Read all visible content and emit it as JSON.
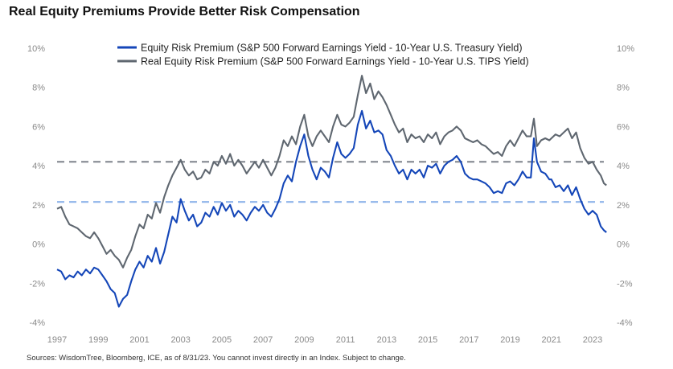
{
  "title": "Real Equity Premiums Provide Better Risk Compensation",
  "source": "Sources: WisdomTree, Bloomberg, ICE, as of 8/31/23. You cannot invest directly in an Index. Subject to change.",
  "chart_data": {
    "type": "line",
    "x_unit": "year",
    "xlim": [
      1997.0,
      2023.67
    ],
    "ylim": [
      -4,
      10
    ],
    "y_ticks": [
      "10%",
      "8%",
      "6%",
      "4%",
      "2%",
      "0%",
      "-2%",
      "-4%"
    ],
    "y_tick_values": [
      10,
      8,
      6,
      4,
      2,
      0,
      -2,
      -4
    ],
    "x_ticks": [
      "1997",
      "1999",
      "2001",
      "2003",
      "2005",
      "2007",
      "2009",
      "2011",
      "2013",
      "2015",
      "2017",
      "2019",
      "2021",
      "2023"
    ],
    "x_tick_values": [
      1997,
      1999,
      2001,
      2003,
      2005,
      2007,
      2009,
      2011,
      2013,
      2015,
      2017,
      2019,
      2021,
      2023
    ],
    "legend_placement": "top-center",
    "grid": false,
    "reference_lines": [
      {
        "y": 4.2,
        "color": "#8a8f96",
        "style": "dashed"
      },
      {
        "y": 2.15,
        "color": "#8fb4ea",
        "style": "dashed"
      }
    ],
    "series": [
      {
        "name": "Equity Risk Premium (S&P 500 Forward Earnings Yield - 10-Year U.S. Treasury Yield)",
        "color": "#1446b8",
        "points": [
          [
            1997.0,
            -1.3
          ],
          [
            1997.2,
            -1.4
          ],
          [
            1997.4,
            -1.8
          ],
          [
            1997.6,
            -1.6
          ],
          [
            1997.8,
            -1.7
          ],
          [
            1998.0,
            -1.4
          ],
          [
            1998.2,
            -1.6
          ],
          [
            1998.4,
            -1.3
          ],
          [
            1998.6,
            -1.5
          ],
          [
            1998.8,
            -1.2
          ],
          [
            1999.0,
            -1.3
          ],
          [
            1999.2,
            -1.6
          ],
          [
            1999.4,
            -1.9
          ],
          [
            1999.6,
            -2.3
          ],
          [
            1999.8,
            -2.5
          ],
          [
            2000.0,
            -3.2
          ],
          [
            2000.2,
            -2.8
          ],
          [
            2000.4,
            -2.6
          ],
          [
            2000.6,
            -1.9
          ],
          [
            2000.8,
            -1.3
          ],
          [
            2001.0,
            -0.9
          ],
          [
            2001.2,
            -1.2
          ],
          [
            2001.4,
            -0.6
          ],
          [
            2001.6,
            -0.9
          ],
          [
            2001.8,
            -0.2
          ],
          [
            2002.0,
            -1.0
          ],
          [
            2002.2,
            -0.4
          ],
          [
            2002.4,
            0.5
          ],
          [
            2002.6,
            1.4
          ],
          [
            2002.8,
            1.1
          ],
          [
            2003.0,
            2.3
          ],
          [
            2003.2,
            1.7
          ],
          [
            2003.4,
            1.2
          ],
          [
            2003.6,
            1.5
          ],
          [
            2003.8,
            0.9
          ],
          [
            2004.0,
            1.1
          ],
          [
            2004.2,
            1.6
          ],
          [
            2004.4,
            1.4
          ],
          [
            2004.6,
            1.9
          ],
          [
            2004.8,
            1.5
          ],
          [
            2005.0,
            2.1
          ],
          [
            2005.2,
            1.7
          ],
          [
            2005.4,
            2.0
          ],
          [
            2005.6,
            1.4
          ],
          [
            2005.8,
            1.7
          ],
          [
            2006.0,
            1.5
          ],
          [
            2006.2,
            1.2
          ],
          [
            2006.4,
            1.6
          ],
          [
            2006.6,
            1.9
          ],
          [
            2006.8,
            1.7
          ],
          [
            2007.0,
            2.0
          ],
          [
            2007.2,
            1.6
          ],
          [
            2007.4,
            1.4
          ],
          [
            2007.6,
            1.8
          ],
          [
            2007.8,
            2.3
          ],
          [
            2008.0,
            3.1
          ],
          [
            2008.2,
            3.5
          ],
          [
            2008.4,
            3.2
          ],
          [
            2008.6,
            4.2
          ],
          [
            2008.8,
            5.0
          ],
          [
            2009.0,
            5.6
          ],
          [
            2009.2,
            4.5
          ],
          [
            2009.4,
            3.8
          ],
          [
            2009.6,
            3.3
          ],
          [
            2009.8,
            3.9
          ],
          [
            2010.0,
            3.7
          ],
          [
            2010.2,
            3.4
          ],
          [
            2010.4,
            4.4
          ],
          [
            2010.6,
            5.2
          ],
          [
            2010.8,
            4.6
          ],
          [
            2011.0,
            4.4
          ],
          [
            2011.2,
            4.6
          ],
          [
            2011.4,
            4.9
          ],
          [
            2011.6,
            6.1
          ],
          [
            2011.8,
            6.8
          ],
          [
            2012.0,
            5.9
          ],
          [
            2012.2,
            6.3
          ],
          [
            2012.4,
            5.7
          ],
          [
            2012.6,
            5.8
          ],
          [
            2012.8,
            5.6
          ],
          [
            2013.0,
            4.8
          ],
          [
            2013.2,
            4.5
          ],
          [
            2013.4,
            4.0
          ],
          [
            2013.6,
            3.6
          ],
          [
            2013.8,
            3.8
          ],
          [
            2014.0,
            3.3
          ],
          [
            2014.2,
            3.8
          ],
          [
            2014.4,
            3.6
          ],
          [
            2014.6,
            3.8
          ],
          [
            2014.8,
            3.4
          ],
          [
            2015.0,
            4.0
          ],
          [
            2015.2,
            3.9
          ],
          [
            2015.4,
            4.1
          ],
          [
            2015.6,
            3.6
          ],
          [
            2015.8,
            4.0
          ],
          [
            2016.0,
            4.2
          ],
          [
            2016.2,
            4.3
          ],
          [
            2016.4,
            4.5
          ],
          [
            2016.6,
            4.2
          ],
          [
            2016.8,
            3.6
          ],
          [
            2017.0,
            3.4
          ],
          [
            2017.2,
            3.3
          ],
          [
            2017.4,
            3.3
          ],
          [
            2017.6,
            3.2
          ],
          [
            2017.8,
            3.1
          ],
          [
            2018.0,
            2.9
          ],
          [
            2018.2,
            2.6
          ],
          [
            2018.4,
            2.7
          ],
          [
            2018.6,
            2.6
          ],
          [
            2018.8,
            3.1
          ],
          [
            2019.0,
            3.2
          ],
          [
            2019.2,
            3.0
          ],
          [
            2019.4,
            3.3
          ],
          [
            2019.6,
            3.7
          ],
          [
            2019.8,
            3.4
          ],
          [
            2020.0,
            3.4
          ],
          [
            2020.15,
            5.4
          ],
          [
            2020.3,
            4.2
          ],
          [
            2020.5,
            3.7
          ],
          [
            2020.7,
            3.6
          ],
          [
            2020.9,
            3.3
          ],
          [
            2021.0,
            3.3
          ],
          [
            2021.2,
            2.9
          ],
          [
            2021.4,
            3.0
          ],
          [
            2021.6,
            2.7
          ],
          [
            2021.8,
            3.0
          ],
          [
            2022.0,
            2.5
          ],
          [
            2022.2,
            2.9
          ],
          [
            2022.4,
            2.3
          ],
          [
            2022.6,
            1.8
          ],
          [
            2022.8,
            1.5
          ],
          [
            2023.0,
            1.7
          ],
          [
            2023.2,
            1.5
          ],
          [
            2023.4,
            0.9
          ],
          [
            2023.55,
            0.7
          ],
          [
            2023.67,
            0.6
          ]
        ]
      },
      {
        "name": "Real Equity Risk Premium (S&P 500 Forward Earnings Yield - 10-Year U.S. TIPS Yield)",
        "color": "#5f6770",
        "points": [
          [
            1997.0,
            1.8
          ],
          [
            1997.2,
            1.9
          ],
          [
            1997.4,
            1.4
          ],
          [
            1997.6,
            1.0
          ],
          [
            1997.8,
            0.9
          ],
          [
            1998.0,
            0.8
          ],
          [
            1998.2,
            0.6
          ],
          [
            1998.4,
            0.4
          ],
          [
            1998.6,
            0.3
          ],
          [
            1998.8,
            0.6
          ],
          [
            1999.0,
            0.3
          ],
          [
            1999.2,
            -0.1
          ],
          [
            1999.4,
            -0.5
          ],
          [
            1999.6,
            -0.3
          ],
          [
            1999.8,
            -0.6
          ],
          [
            2000.0,
            -0.8
          ],
          [
            2000.2,
            -1.2
          ],
          [
            2000.4,
            -0.7
          ],
          [
            2000.6,
            -0.3
          ],
          [
            2000.8,
            0.4
          ],
          [
            2001.0,
            1.0
          ],
          [
            2001.2,
            0.8
          ],
          [
            2001.4,
            1.5
          ],
          [
            2001.6,
            1.3
          ],
          [
            2001.8,
            2.1
          ],
          [
            2002.0,
            1.6
          ],
          [
            2002.2,
            2.4
          ],
          [
            2002.4,
            3.0
          ],
          [
            2002.6,
            3.5
          ],
          [
            2002.8,
            3.9
          ],
          [
            2003.0,
            4.3
          ],
          [
            2003.2,
            3.8
          ],
          [
            2003.4,
            3.5
          ],
          [
            2003.6,
            3.7
          ],
          [
            2003.8,
            3.3
          ],
          [
            2004.0,
            3.4
          ],
          [
            2004.2,
            3.8
          ],
          [
            2004.4,
            3.6
          ],
          [
            2004.6,
            4.2
          ],
          [
            2004.8,
            4.0
          ],
          [
            2005.0,
            4.5
          ],
          [
            2005.2,
            4.1
          ],
          [
            2005.4,
            4.6
          ],
          [
            2005.6,
            4.0
          ],
          [
            2005.8,
            4.3
          ],
          [
            2006.0,
            4.0
          ],
          [
            2006.2,
            3.6
          ],
          [
            2006.4,
            3.9
          ],
          [
            2006.6,
            4.2
          ],
          [
            2006.8,
            3.9
          ],
          [
            2007.0,
            4.3
          ],
          [
            2007.2,
            3.9
          ],
          [
            2007.4,
            3.5
          ],
          [
            2007.6,
            3.9
          ],
          [
            2007.8,
            4.5
          ],
          [
            2008.0,
            5.3
          ],
          [
            2008.2,
            5.0
          ],
          [
            2008.4,
            5.5
          ],
          [
            2008.6,
            5.1
          ],
          [
            2008.8,
            6.0
          ],
          [
            2009.0,
            6.6
          ],
          [
            2009.2,
            5.5
          ],
          [
            2009.4,
            5.0
          ],
          [
            2009.6,
            5.5
          ],
          [
            2009.8,
            5.8
          ],
          [
            2010.0,
            5.5
          ],
          [
            2010.2,
            5.2
          ],
          [
            2010.4,
            6.0
          ],
          [
            2010.6,
            6.6
          ],
          [
            2010.8,
            6.1
          ],
          [
            2011.0,
            6.0
          ],
          [
            2011.2,
            6.2
          ],
          [
            2011.4,
            6.5
          ],
          [
            2011.6,
            7.6
          ],
          [
            2011.8,
            8.6
          ],
          [
            2012.0,
            7.7
          ],
          [
            2012.2,
            8.2
          ],
          [
            2012.4,
            7.4
          ],
          [
            2012.6,
            7.8
          ],
          [
            2012.8,
            7.5
          ],
          [
            2013.0,
            7.1
          ],
          [
            2013.2,
            6.6
          ],
          [
            2013.4,
            6.1
          ],
          [
            2013.6,
            5.7
          ],
          [
            2013.8,
            5.9
          ],
          [
            2014.0,
            5.2
          ],
          [
            2014.2,
            5.6
          ],
          [
            2014.4,
            5.4
          ],
          [
            2014.6,
            5.5
          ],
          [
            2014.8,
            5.2
          ],
          [
            2015.0,
            5.6
          ],
          [
            2015.2,
            5.4
          ],
          [
            2015.4,
            5.7
          ],
          [
            2015.6,
            5.1
          ],
          [
            2015.8,
            5.5
          ],
          [
            2016.0,
            5.7
          ],
          [
            2016.2,
            5.8
          ],
          [
            2016.4,
            6.0
          ],
          [
            2016.6,
            5.8
          ],
          [
            2016.8,
            5.4
          ],
          [
            2017.0,
            5.3
          ],
          [
            2017.2,
            5.2
          ],
          [
            2017.4,
            5.3
          ],
          [
            2017.6,
            5.1
          ],
          [
            2017.8,
            5.0
          ],
          [
            2018.0,
            4.8
          ],
          [
            2018.2,
            4.6
          ],
          [
            2018.4,
            4.7
          ],
          [
            2018.6,
            4.5
          ],
          [
            2018.8,
            5.0
          ],
          [
            2019.0,
            5.3
          ],
          [
            2019.2,
            5.0
          ],
          [
            2019.4,
            5.4
          ],
          [
            2019.6,
            5.8
          ],
          [
            2019.8,
            5.5
          ],
          [
            2020.0,
            5.5
          ],
          [
            2020.15,
            6.4
          ],
          [
            2020.3,
            5.0
          ],
          [
            2020.5,
            5.3
          ],
          [
            2020.7,
            5.4
          ],
          [
            2020.9,
            5.3
          ],
          [
            2021.0,
            5.4
          ],
          [
            2021.2,
            5.6
          ],
          [
            2021.4,
            5.5
          ],
          [
            2021.6,
            5.7
          ],
          [
            2021.8,
            5.9
          ],
          [
            2022.0,
            5.4
          ],
          [
            2022.2,
            5.7
          ],
          [
            2022.4,
            4.9
          ],
          [
            2022.6,
            4.4
          ],
          [
            2022.8,
            4.1
          ],
          [
            2023.0,
            4.2
          ],
          [
            2023.2,
            3.8
          ],
          [
            2023.4,
            3.5
          ],
          [
            2023.55,
            3.1
          ],
          [
            2023.67,
            3.0
          ]
        ]
      }
    ]
  }
}
